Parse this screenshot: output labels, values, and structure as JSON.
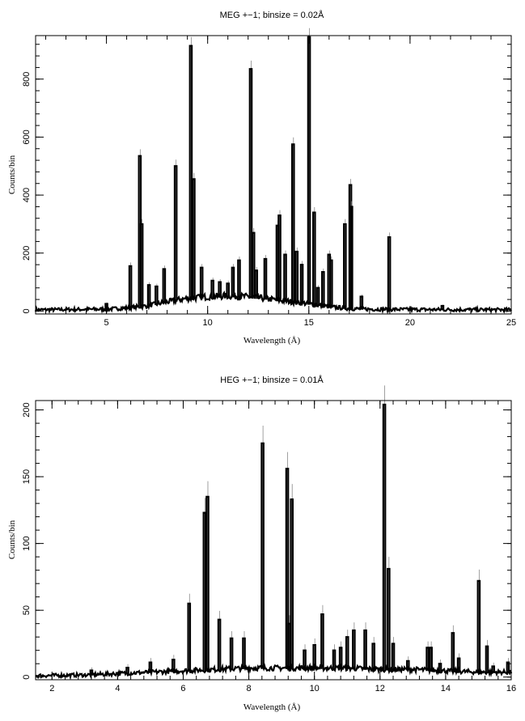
{
  "chart_data": [
    {
      "type": "line",
      "title": "MEG +−1; binsize = 0.02Å",
      "xlabel": "Wavelength (Å)",
      "ylabel": "Counts/bin",
      "xlim": [
        1.5,
        25
      ],
      "ylim": [
        -10,
        950
      ],
      "xticks": [
        5,
        10,
        15,
        20,
        25
      ],
      "yticks": [
        0,
        200,
        400,
        600,
        800
      ],
      "continuum": [
        [
          1.5,
          2
        ],
        [
          5,
          4
        ],
        [
          6,
          8
        ],
        [
          7,
          15
        ],
        [
          8,
          28
        ],
        [
          9,
          40
        ],
        [
          10,
          45
        ],
        [
          11,
          48
        ],
        [
          12,
          45
        ],
        [
          13,
          38
        ],
        [
          14,
          30
        ],
        [
          15,
          22
        ],
        [
          16,
          12
        ],
        [
          17,
          6
        ],
        [
          18,
          4
        ],
        [
          20,
          3
        ],
        [
          25,
          2
        ]
      ],
      "lines": [
        {
          "x": 5.0,
          "y": 25
        },
        {
          "x": 6.18,
          "y": 155
        },
        {
          "x": 6.65,
          "y": 535
        },
        {
          "x": 6.74,
          "y": 300
        },
        {
          "x": 7.1,
          "y": 90
        },
        {
          "x": 7.47,
          "y": 85
        },
        {
          "x": 7.85,
          "y": 145
        },
        {
          "x": 8.42,
          "y": 500
        },
        {
          "x": 9.17,
          "y": 915
        },
        {
          "x": 9.31,
          "y": 455
        },
        {
          "x": 9.7,
          "y": 150
        },
        {
          "x": 10.24,
          "y": 105
        },
        {
          "x": 10.6,
          "y": 100
        },
        {
          "x": 11.0,
          "y": 95
        },
        {
          "x": 11.25,
          "y": 150
        },
        {
          "x": 11.55,
          "y": 175
        },
        {
          "x": 12.13,
          "y": 835
        },
        {
          "x": 12.26,
          "y": 270
        },
        {
          "x": 12.4,
          "y": 140
        },
        {
          "x": 12.85,
          "y": 180
        },
        {
          "x": 13.45,
          "y": 295
        },
        {
          "x": 13.55,
          "y": 330
        },
        {
          "x": 13.83,
          "y": 195
        },
        {
          "x": 14.22,
          "y": 575
        },
        {
          "x": 14.4,
          "y": 205
        },
        {
          "x": 14.65,
          "y": 160
        },
        {
          "x": 15.01,
          "y": 945
        },
        {
          "x": 15.26,
          "y": 340
        },
        {
          "x": 15.45,
          "y": 80
        },
        {
          "x": 15.7,
          "y": 135
        },
        {
          "x": 16.0,
          "y": 195
        },
        {
          "x": 16.1,
          "y": 175
        },
        {
          "x": 16.78,
          "y": 300
        },
        {
          "x": 17.05,
          "y": 435
        },
        {
          "x": 17.1,
          "y": 360
        },
        {
          "x": 17.6,
          "y": 50
        },
        {
          "x": 18.97,
          "y": 255
        },
        {
          "x": 21.6,
          "y": 18
        }
      ]
    },
    {
      "type": "line",
      "title": "HEG +−1; binsize = 0.01Å",
      "xlabel": "Wavelength (Å)",
      "ylabel": "Counts/bin",
      "xlim": [
        1.5,
        16
      ],
      "ylim": [
        -2,
        207
      ],
      "xticks": [
        2,
        4,
        6,
        8,
        10,
        12,
        14,
        16
      ],
      "yticks": [
        0,
        50,
        100,
        150,
        200
      ],
      "continuum": [
        [
          1.5,
          0.5
        ],
        [
          3,
          1
        ],
        [
          4,
          2
        ],
        [
          5,
          3
        ],
        [
          6,
          4
        ],
        [
          7,
          5
        ],
        [
          8,
          6
        ],
        [
          9,
          6
        ],
        [
          10,
          6
        ],
        [
          11,
          6
        ],
        [
          12,
          5
        ],
        [
          13,
          5
        ],
        [
          14,
          4
        ],
        [
          15,
          3
        ],
        [
          16,
          3
        ]
      ],
      "lines": [
        {
          "x": 3.2,
          "y": 5
        },
        {
          "x": 4.3,
          "y": 7
        },
        {
          "x": 5.0,
          "y": 11
        },
        {
          "x": 5.7,
          "y": 13
        },
        {
          "x": 6.18,
          "y": 55
        },
        {
          "x": 6.65,
          "y": 123
        },
        {
          "x": 6.74,
          "y": 135
        },
        {
          "x": 7.1,
          "y": 43
        },
        {
          "x": 7.47,
          "y": 29
        },
        {
          "x": 7.85,
          "y": 29
        },
        {
          "x": 8.42,
          "y": 175
        },
        {
          "x": 9.17,
          "y": 156
        },
        {
          "x": 9.23,
          "y": 40
        },
        {
          "x": 9.31,
          "y": 133
        },
        {
          "x": 9.7,
          "y": 20
        },
        {
          "x": 10.0,
          "y": 24
        },
        {
          "x": 10.24,
          "y": 47
        },
        {
          "x": 10.6,
          "y": 20
        },
        {
          "x": 10.8,
          "y": 22
        },
        {
          "x": 11.0,
          "y": 30
        },
        {
          "x": 11.2,
          "y": 35
        },
        {
          "x": 11.55,
          "y": 35
        },
        {
          "x": 11.8,
          "y": 25
        },
        {
          "x": 12.13,
          "y": 204
        },
        {
          "x": 12.26,
          "y": 81
        },
        {
          "x": 12.4,
          "y": 25
        },
        {
          "x": 12.85,
          "y": 12
        },
        {
          "x": 13.45,
          "y": 22
        },
        {
          "x": 13.55,
          "y": 22
        },
        {
          "x": 13.83,
          "y": 10
        },
        {
          "x": 14.22,
          "y": 33
        },
        {
          "x": 14.4,
          "y": 14
        },
        {
          "x": 15.01,
          "y": 72
        },
        {
          "x": 15.26,
          "y": 23
        },
        {
          "x": 15.45,
          "y": 8
        },
        {
          "x": 15.9,
          "y": 11
        }
      ]
    }
  ]
}
